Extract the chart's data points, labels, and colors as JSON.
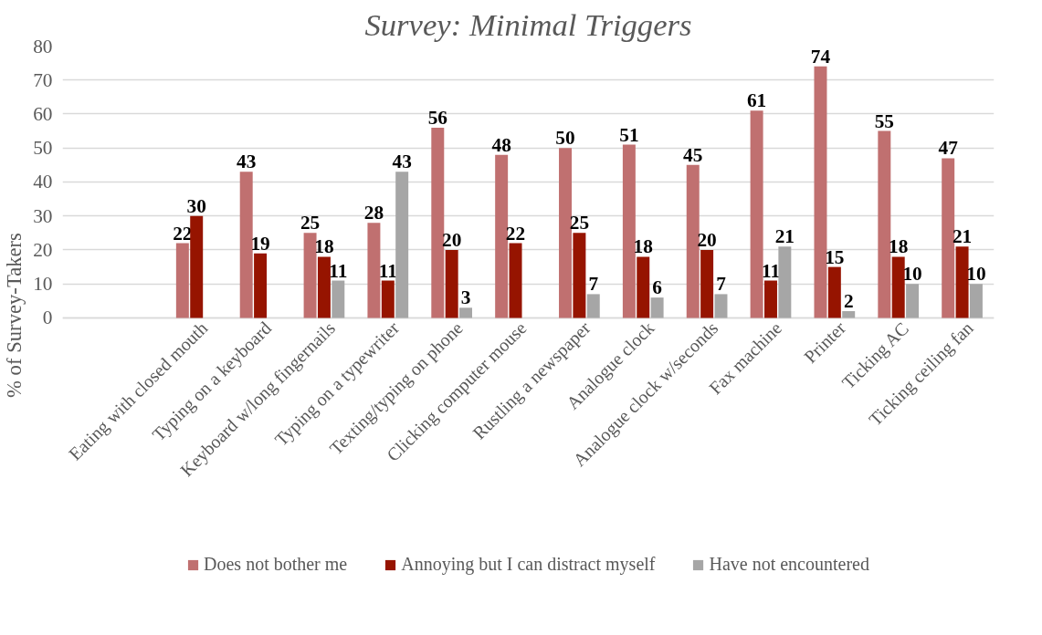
{
  "chart_data": {
    "type": "bar",
    "title": "Survey: Minimal Triggers",
    "ylabel": "% of Survey-Takers",
    "categories": [
      "Eating with closed mouth",
      "Typing on a keyboard",
      "Keyboard w/long fingernails",
      "Typing on a typewriter",
      "Texting/typing on phone",
      "Clicking computer mouse",
      "Rustling a newspaper",
      "Analogue clock",
      "Analogue clock w/seconds",
      "Fax machine",
      "Printer",
      "Ticking AC",
      "Ticking ceiling fan"
    ],
    "series": [
      {
        "name": "Does not bother me",
        "color": "#c07070",
        "values": [
          22,
          43,
          25,
          28,
          56,
          48,
          50,
          51,
          45,
          61,
          74,
          55,
          47
        ]
      },
      {
        "name": "Annoying but I can distract myself",
        "color": "#961400",
        "values": [
          30,
          19,
          18,
          11,
          20,
          22,
          25,
          18,
          20,
          11,
          15,
          18,
          21
        ]
      },
      {
        "name": "Have not encountered",
        "color": "#a6a6a6",
        "values": [
          null,
          null,
          11,
          43,
          3,
          null,
          7,
          6,
          7,
          21,
          2,
          10,
          10
        ]
      }
    ],
    "ylim": [
      0,
      80
    ],
    "yticks": [
      0,
      10,
      20,
      30,
      40,
      50,
      60,
      70,
      80
    ],
    "grid": "y",
    "legend": "bottom",
    "data_labels": true
  }
}
